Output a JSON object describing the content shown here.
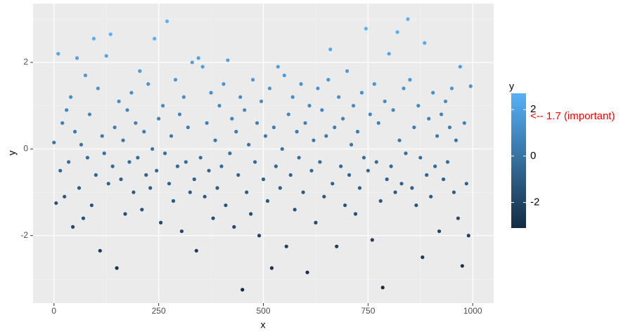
{
  "chart_data": {
    "type": "scatter",
    "x_label": "x",
    "y_label": "y",
    "xlim": [
      -50,
      1050
    ],
    "ylim": [
      -3.56,
      3.36
    ],
    "xticks": [
      0,
      250,
      500,
      750,
      1000
    ],
    "yticks": [
      -2,
      0,
      2
    ],
    "grid": true,
    "color_low": "#132B43",
    "color_high": "#56B1F7",
    "legend": {
      "title": "y",
      "lim": [
        -3.1,
        2.7
      ],
      "ticks": [
        -2,
        0,
        2
      ]
    },
    "annotation": {
      "text": "<-- 1.7 (important)",
      "value": 1.7,
      "color": "#ff0000"
    },
    "x": [
      0,
      5,
      10,
      15,
      20,
      25,
      30,
      35,
      40,
      45,
      50,
      55,
      60,
      65,
      70,
      75,
      80,
      85,
      90,
      95,
      100,
      105,
      110,
      115,
      120,
      125,
      130,
      135,
      140,
      145,
      150,
      155,
      160,
      165,
      170,
      175,
      180,
      185,
      190,
      195,
      200,
      205,
      210,
      215,
      220,
      225,
      230,
      235,
      240,
      245,
      250,
      255,
      260,
      265,
      270,
      275,
      280,
      285,
      290,
      295,
      300,
      305,
      310,
      315,
      320,
      325,
      330,
      335,
      340,
      345,
      350,
      355,
      360,
      365,
      370,
      375,
      380,
      385,
      390,
      395,
      400,
      405,
      410,
      415,
      420,
      425,
      430,
      435,
      440,
      445,
      450,
      455,
      460,
      465,
      470,
      475,
      480,
      485,
      490,
      495,
      500,
      505,
      510,
      515,
      520,
      525,
      530,
      535,
      540,
      545,
      550,
      555,
      560,
      565,
      570,
      575,
      580,
      585,
      590,
      595,
      600,
      605,
      610,
      615,
      620,
      625,
      630,
      635,
      640,
      645,
      650,
      655,
      660,
      665,
      670,
      675,
      680,
      685,
      690,
      695,
      700,
      705,
      710,
      715,
      720,
      725,
      730,
      735,
      740,
      745,
      750,
      755,
      760,
      765,
      770,
      775,
      780,
      785,
      790,
      795,
      800,
      805,
      810,
      815,
      820,
      825,
      830,
      835,
      840,
      845,
      850,
      855,
      860,
      865,
      870,
      875,
      880,
      885,
      890,
      895,
      900,
      905,
      910,
      915,
      920,
      925,
      930,
      935,
      940,
      945,
      950,
      955,
      960,
      965,
      970,
      975,
      980,
      985,
      990,
      995
    ],
    "values": [
      0.15,
      -1.25,
      2.2,
      -0.5,
      0.6,
      -1.1,
      0.9,
      -0.3,
      1.2,
      -1.8,
      0.4,
      2.1,
      -0.9,
      0.1,
      -1.6,
      1.7,
      -0.2,
      0.8,
      -1.3,
      2.55,
      -0.6,
      1.4,
      -2.35,
      0.3,
      -0.1,
      2.15,
      -0.8,
      2.65,
      -0.4,
      0.5,
      -2.75,
      1.1,
      -0.7,
      0.2,
      -1.5,
      0.9,
      -0.3,
      1.3,
      -1.0,
      0.6,
      -0.2,
      1.8,
      -1.4,
      0.4,
      -0.6,
      1.5,
      -0.9,
      0.0,
      2.55,
      -0.5,
      0.7,
      -1.7,
      1.0,
      -0.1,
      2.95,
      -0.8,
      0.3,
      -1.2,
      1.6,
      -0.4,
      0.8,
      -1.9,
      1.2,
      -0.3,
      0.5,
      -1.0,
      2.0,
      -0.7,
      -2.35,
      2.1,
      -0.2,
      1.9,
      -1.1,
      0.6,
      -0.5,
      1.3,
      -1.6,
      0.2,
      -0.9,
      1.0,
      -0.4,
      1.5,
      -1.3,
      2.05,
      -0.1,
      0.7,
      -1.8,
      0.4,
      -0.6,
      1.2,
      -3.25,
      0.9,
      -1.0,
      0.1,
      -1.5,
      1.6,
      -0.3,
      0.6,
      -2.0,
      1.1,
      -0.7,
      0.3,
      -1.2,
      1.4,
      -2.75,
      0.5,
      -0.4,
      1.9,
      -0.9,
      0.0,
      1.7,
      -2.25,
      0.8,
      -0.6,
      1.2,
      -1.4,
      0.4,
      -0.2,
      1.5,
      -1.0,
      0.6,
      -2.85,
      1.0,
      -0.5,
      0.2,
      -1.7,
      1.4,
      -0.3,
      0.9,
      -1.1,
      0.3,
      1.6,
      2.3,
      -0.8,
      0.5,
      -2.25,
      1.2,
      -0.4,
      0.7,
      -1.3,
      1.8,
      -0.6,
      0.1,
      1.0,
      -1.5,
      0.4,
      -0.9,
      1.3,
      -0.2,
      2.78,
      -0.5,
      0.8,
      -2.1,
      1.5,
      -0.3,
      0.6,
      -1.2,
      -3.2,
      1.1,
      -0.7,
      2.2,
      -0.4,
      0.9,
      -1.0,
      2.7,
      0.2,
      -0.8,
      1.4,
      -0.1,
      3.0,
      1.6,
      -0.9,
      0.5,
      -1.3,
      1.0,
      -0.2,
      -2.5,
      2.45,
      -0.6,
      0.7,
      -1.1,
      1.3,
      -0.4,
      0.3,
      -1.9,
      0.8,
      -0.7,
      1.1,
      -0.3,
      0.5,
      1.4,
      -1.0,
      0.2,
      -1.6,
      1.9,
      -2.7,
      0.6,
      -0.8,
      -2.0,
      1.45
    ]
  }
}
